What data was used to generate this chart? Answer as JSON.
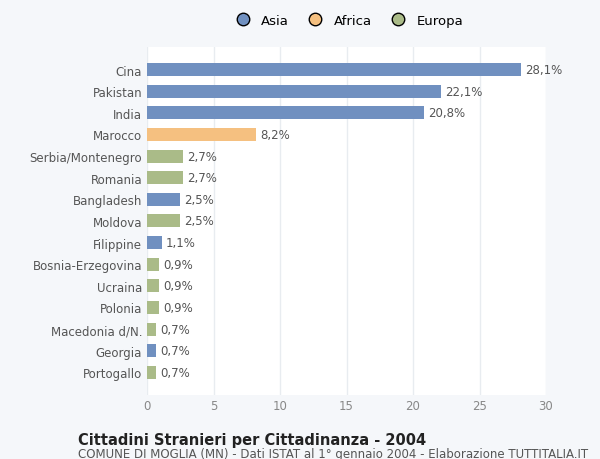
{
  "categories": [
    "Cina",
    "Pakistan",
    "India",
    "Marocco",
    "Serbia/Montenegro",
    "Romania",
    "Bangladesh",
    "Moldova",
    "Filippine",
    "Bosnia-Erzegovina",
    "Ucraina",
    "Polonia",
    "Macedonia d/N.",
    "Georgia",
    "Portogallo"
  ],
  "values": [
    28.1,
    22.1,
    20.8,
    8.2,
    2.7,
    2.7,
    2.5,
    2.5,
    1.1,
    0.9,
    0.9,
    0.9,
    0.7,
    0.7,
    0.7
  ],
  "labels": [
    "28,1%",
    "22,1%",
    "20,8%",
    "8,2%",
    "2,7%",
    "2,7%",
    "2,5%",
    "2,5%",
    "1,1%",
    "0,9%",
    "0,9%",
    "0,9%",
    "0,7%",
    "0,7%",
    "0,7%"
  ],
  "colors": [
    "#7090c0",
    "#7090c0",
    "#7090c0",
    "#f5c080",
    "#aabb88",
    "#aabb88",
    "#7090c0",
    "#aabb88",
    "#7090c0",
    "#aabb88",
    "#aabb88",
    "#aabb88",
    "#aabb88",
    "#7090c0",
    "#aabb88"
  ],
  "legend_labels": [
    "Asia",
    "Africa",
    "Europa"
  ],
  "legend_colors": [
    "#7090c0",
    "#f5c080",
    "#aabb88"
  ],
  "title": "Cittadini Stranieri per Cittadinanza - 2004",
  "subtitle": "COMUNE DI MOGLIA (MN) - Dati ISTAT al 1° gennaio 2004 - Elaborazione TUTTITALIA.IT",
  "xlim": [
    0,
    30
  ],
  "xticks": [
    0,
    5,
    10,
    15,
    20,
    25,
    30
  ],
  "background_color": "#f5f7fa",
  "plot_bg": "#ffffff",
  "grid_color": "#e8ecf0",
  "title_fontsize": 10.5,
  "subtitle_fontsize": 8.5,
  "label_fontsize": 8.5,
  "tick_fontsize": 8.5,
  "bar_height": 0.6
}
